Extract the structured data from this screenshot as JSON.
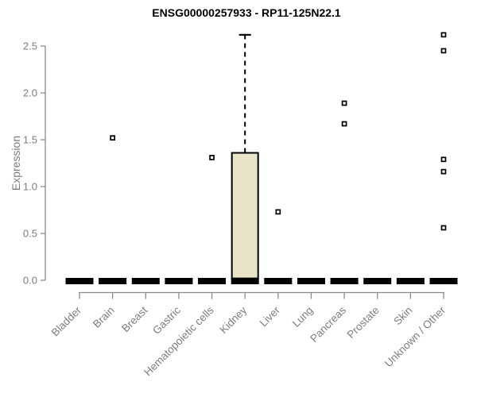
{
  "chart_data": {
    "type": "boxplot",
    "title": "ENSG00000257933 - RP11-125N22.1",
    "xlabel": "",
    "ylabel": "Expression",
    "ylim": [
      0,
      2.5
    ],
    "yticks": [
      "0.0",
      "0.5",
      "1.0",
      "1.5",
      "2.0",
      "2.5"
    ],
    "ytick_values": [
      0.0,
      0.5,
      1.0,
      1.5,
      2.0,
      2.5
    ],
    "grid": false,
    "legend": false,
    "categories": [
      "Bladder",
      "Brain",
      "Breast",
      "Gastric",
      "Hematopoietic cells",
      "Kidney",
      "Liver",
      "Lung",
      "Pancreas",
      "Prostate",
      "Skin",
      "Unknown / Other"
    ],
    "boxes": [
      {
        "category": "Bladder",
        "median": 0,
        "q1": 0,
        "q3": 0,
        "whisker_low": 0,
        "whisker_high": 0,
        "outliers": []
      },
      {
        "category": "Brain",
        "median": 0,
        "q1": 0,
        "q3": 0,
        "whisker_low": 0,
        "whisker_high": 0,
        "outliers": [
          1.52
        ]
      },
      {
        "category": "Breast",
        "median": 0,
        "q1": 0,
        "q3": 0,
        "whisker_low": 0,
        "whisker_high": 0,
        "outliers": []
      },
      {
        "category": "Gastric",
        "median": 0,
        "q1": 0,
        "q3": 0,
        "whisker_low": 0,
        "whisker_high": 0,
        "outliers": []
      },
      {
        "category": "Hematopoietic cells",
        "median": 0,
        "q1": 0,
        "q3": 0,
        "whisker_low": 0,
        "whisker_high": 0,
        "outliers": [
          1.31
        ]
      },
      {
        "category": "Kidney",
        "median": 0,
        "q1": 0.02,
        "q3": 1.36,
        "whisker_low": 0,
        "whisker_high": 2.62,
        "outliers": []
      },
      {
        "category": "Liver",
        "median": 0,
        "q1": 0,
        "q3": 0,
        "whisker_low": 0,
        "whisker_high": 0,
        "outliers": [
          0.73
        ]
      },
      {
        "category": "Lung",
        "median": 0,
        "q1": 0,
        "q3": 0,
        "whisker_low": 0,
        "whisker_high": 0,
        "outliers": []
      },
      {
        "category": "Pancreas",
        "median": 0,
        "q1": 0,
        "q3": 0,
        "whisker_low": 0,
        "whisker_high": 0,
        "outliers": [
          1.89,
          1.67
        ]
      },
      {
        "category": "Prostate",
        "median": 0,
        "q1": 0,
        "q3": 0,
        "whisker_low": 0,
        "whisker_high": 0,
        "outliers": []
      },
      {
        "category": "Skin",
        "median": 0,
        "q1": 0,
        "q3": 0,
        "whisker_low": 0,
        "whisker_high": 0,
        "outliers": []
      },
      {
        "category": "Unknown / Other",
        "median": 0,
        "q1": 0,
        "q3": 0,
        "whisker_low": 0,
        "whisker_high": 0,
        "outliers": [
          2.62,
          2.45,
          1.29,
          1.16,
          0.56
        ]
      }
    ],
    "colors": {
      "background": "#ffffff",
      "box_fill": "#e9e4c9",
      "box_border": "#000000",
      "median": "#000000",
      "whisker": "#000000",
      "outlier": "#000000",
      "axis_line": "#8a8a8a",
      "tick_label": "#7d7d7d",
      "axis_label": "#7d7d7d",
      "title": "#000000"
    }
  }
}
